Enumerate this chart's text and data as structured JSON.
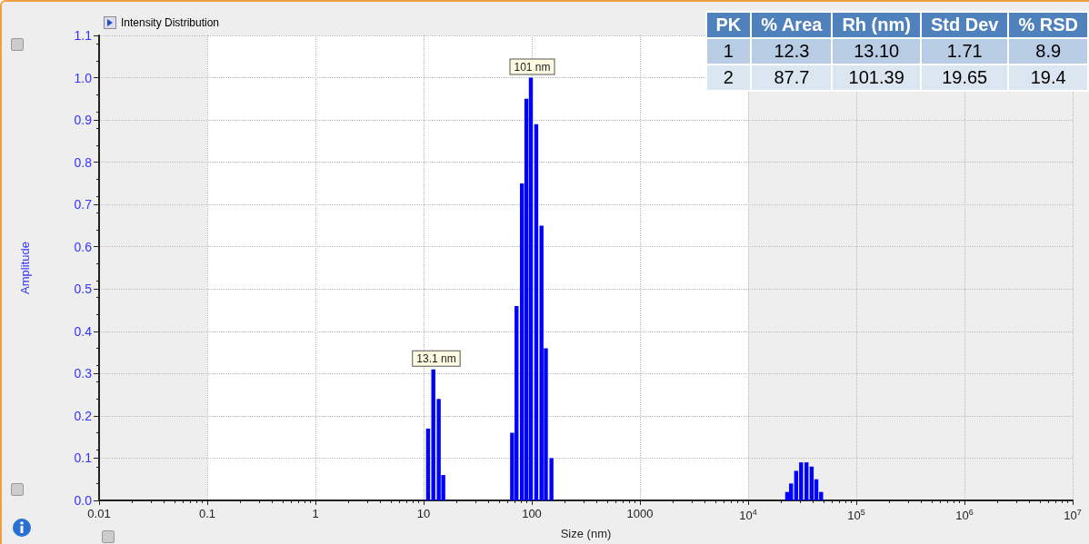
{
  "chart_data": {
    "type": "bar",
    "title": "Intensity Distribution",
    "xlabel": "Size (nm)",
    "ylabel": "Amplitude",
    "log": "x",
    "color": "#0000ff",
    "x": [
      11.0,
      12.3,
      13.8,
      15.2,
      65.8,
      72.3,
      81.1,
      89.2,
      98.1,
      110,
      123,
      135,
      152,
      22960,
      24950,
      27800,
      30900,
      34650,
      38650,
      42700,
      47300
    ],
    "values": [
      0.17,
      0.31,
      0.24,
      0.06,
      0.16,
      0.46,
      0.75,
      0.95,
      1.0,
      0.89,
      0.65,
      0.36,
      0.1,
      0.02,
      0.04,
      0.07,
      0.09,
      0.09,
      0.08,
      0.05,
      0.02
    ],
    "xlim": [
      0.01,
      10000000
    ],
    "xticks": [
      0.01,
      0.1,
      1,
      10,
      100,
      1000,
      {
        "value": 10000,
        "label": "10$^{4}$"
      },
      {
        "value": 100000,
        "label": "10$^{5}$"
      },
      {
        "value": 1000000,
        "label": "10$^{6}$"
      },
      {
        "value": 10000000,
        "label": "10$^{7}$"
      }
    ],
    "ylim": [
      0,
      1.1
    ],
    "yticks": [
      {
        "value": 0,
        "label": "0.0"
      },
      0.1,
      0.2,
      0.3,
      0.4,
      0.5,
      0.6,
      0.7,
      0.8,
      0.9,
      {
        "value": 1,
        "label": "1.0"
      },
      1.1
    ],
    "grid": true,
    "bands": [
      {
        "axis": "x",
        "from": 0.01,
        "to": 0.1,
        "color": "#eeeeee"
      },
      {
        "axis": "x",
        "from": 10000,
        "to": 10000000,
        "color": "#eeeeee"
      }
    ],
    "annotations": [
      {
        "text": "13.1 nm",
        "x": 13.1,
        "y": 0.31
      },
      {
        "text": "101 nm",
        "x": 101,
        "y": 1.0
      },
      "PK",
      "% Area",
      "Rh (nm)",
      "Std Dev",
      "% RSD",
      "1",
      "12.3",
      "13.10",
      "1.71",
      "8.9",
      "2",
      "87.7",
      "101.39",
      "19.65",
      "19.4"
    ]
  }
}
